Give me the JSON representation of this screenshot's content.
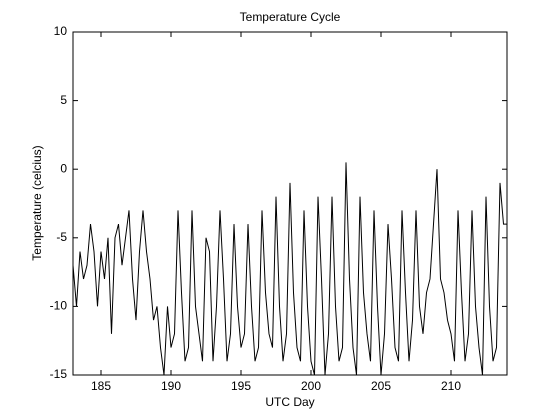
{
  "chart_data": {
    "type": "line",
    "title": "Temperature Cycle",
    "x_label": "UTC Day",
    "y_label": "Temperature (celcius)",
    "x": [
      183,
      183.25,
      183.5,
      183.75,
      184,
      184.25,
      184.5,
      184.75,
      185,
      185.25,
      185.5,
      185.75,
      186,
      186.25,
      186.5,
      186.75,
      187,
      187.25,
      187.5,
      187.75,
      188,
      188.25,
      188.5,
      188.75,
      189,
      189.25,
      189.5,
      189.75,
      190,
      190.25,
      190.5,
      190.75,
      191,
      191.25,
      191.5,
      191.75,
      192,
      192.25,
      192.5,
      192.75,
      193,
      193.25,
      193.5,
      193.75,
      194,
      194.25,
      194.5,
      194.75,
      195,
      195.25,
      195.5,
      195.75,
      196,
      196.25,
      196.5,
      196.75,
      197,
      197.25,
      197.5,
      197.75,
      198,
      198.25,
      198.5,
      198.75,
      199,
      199.25,
      199.5,
      199.75,
      200,
      200.25,
      200.5,
      200.75,
      201,
      201.25,
      201.5,
      201.75,
      202,
      202.25,
      202.5,
      202.75,
      203,
      203.25,
      203.5,
      203.75,
      204,
      204.25,
      204.5,
      204.75,
      205,
      205.25,
      205.5,
      205.75,
      206,
      206.25,
      206.5,
      206.75,
      207,
      207.25,
      207.5,
      207.75,
      208,
      208.25,
      208.5,
      208.75,
      209,
      209.25,
      209.5,
      209.75,
      210,
      210.25,
      210.5,
      210.75,
      211,
      211.25,
      211.5,
      211.75,
      212,
      212.25,
      212.5,
      212.75,
      213,
      213.25,
      213.5,
      213.75,
      214
    ],
    "series": [
      {
        "color": "#000000",
        "values": [
          -7,
          -10,
          -6,
          -8,
          -7,
          -4,
          -6,
          -10,
          -6,
          -8,
          -5,
          -12,
          -5,
          -4,
          -7,
          -5,
          -3,
          -8,
          -11,
          -6,
          -3,
          -6,
          -8,
          -11,
          -10,
          -13,
          -15,
          -10,
          -13,
          -12,
          -3,
          -9,
          -14,
          -13,
          -3,
          -10,
          -12,
          -14,
          -5,
          -6,
          -14,
          -10,
          -3,
          -8,
          -14,
          -12,
          -4,
          -10,
          -13,
          -12,
          -4,
          -10,
          -14,
          -13,
          -3,
          -9,
          -12,
          -13,
          -2,
          -10,
          -14,
          -12,
          -1,
          -9,
          -13,
          -14,
          -3,
          -10,
          -14,
          -15,
          -2,
          -8,
          -15,
          -12,
          -2,
          -10,
          -14,
          -13,
          0.5,
          -8,
          -13,
          -15,
          -2,
          -9,
          -12,
          -14,
          -3,
          -10,
          -15,
          -12,
          -4,
          -8,
          -13,
          -14,
          -3,
          -9,
          -14,
          -11,
          -3,
          -10,
          -12,
          -9,
          -8,
          -4,
          0,
          -8,
          -9,
          -11,
          -12,
          -14,
          -3,
          -9,
          -14,
          -12,
          -3,
          -10,
          -13,
          -15,
          -2,
          -10,
          -14,
          -13,
          -1,
          -4,
          -4
        ]
      }
    ],
    "xlim": [
      183,
      214
    ],
    "ylim": [
      -15,
      10
    ],
    "xticks": [
      185,
      190,
      195,
      200,
      205,
      210
    ],
    "yticks": [
      -15,
      -10,
      -5,
      0,
      5,
      10
    ]
  }
}
